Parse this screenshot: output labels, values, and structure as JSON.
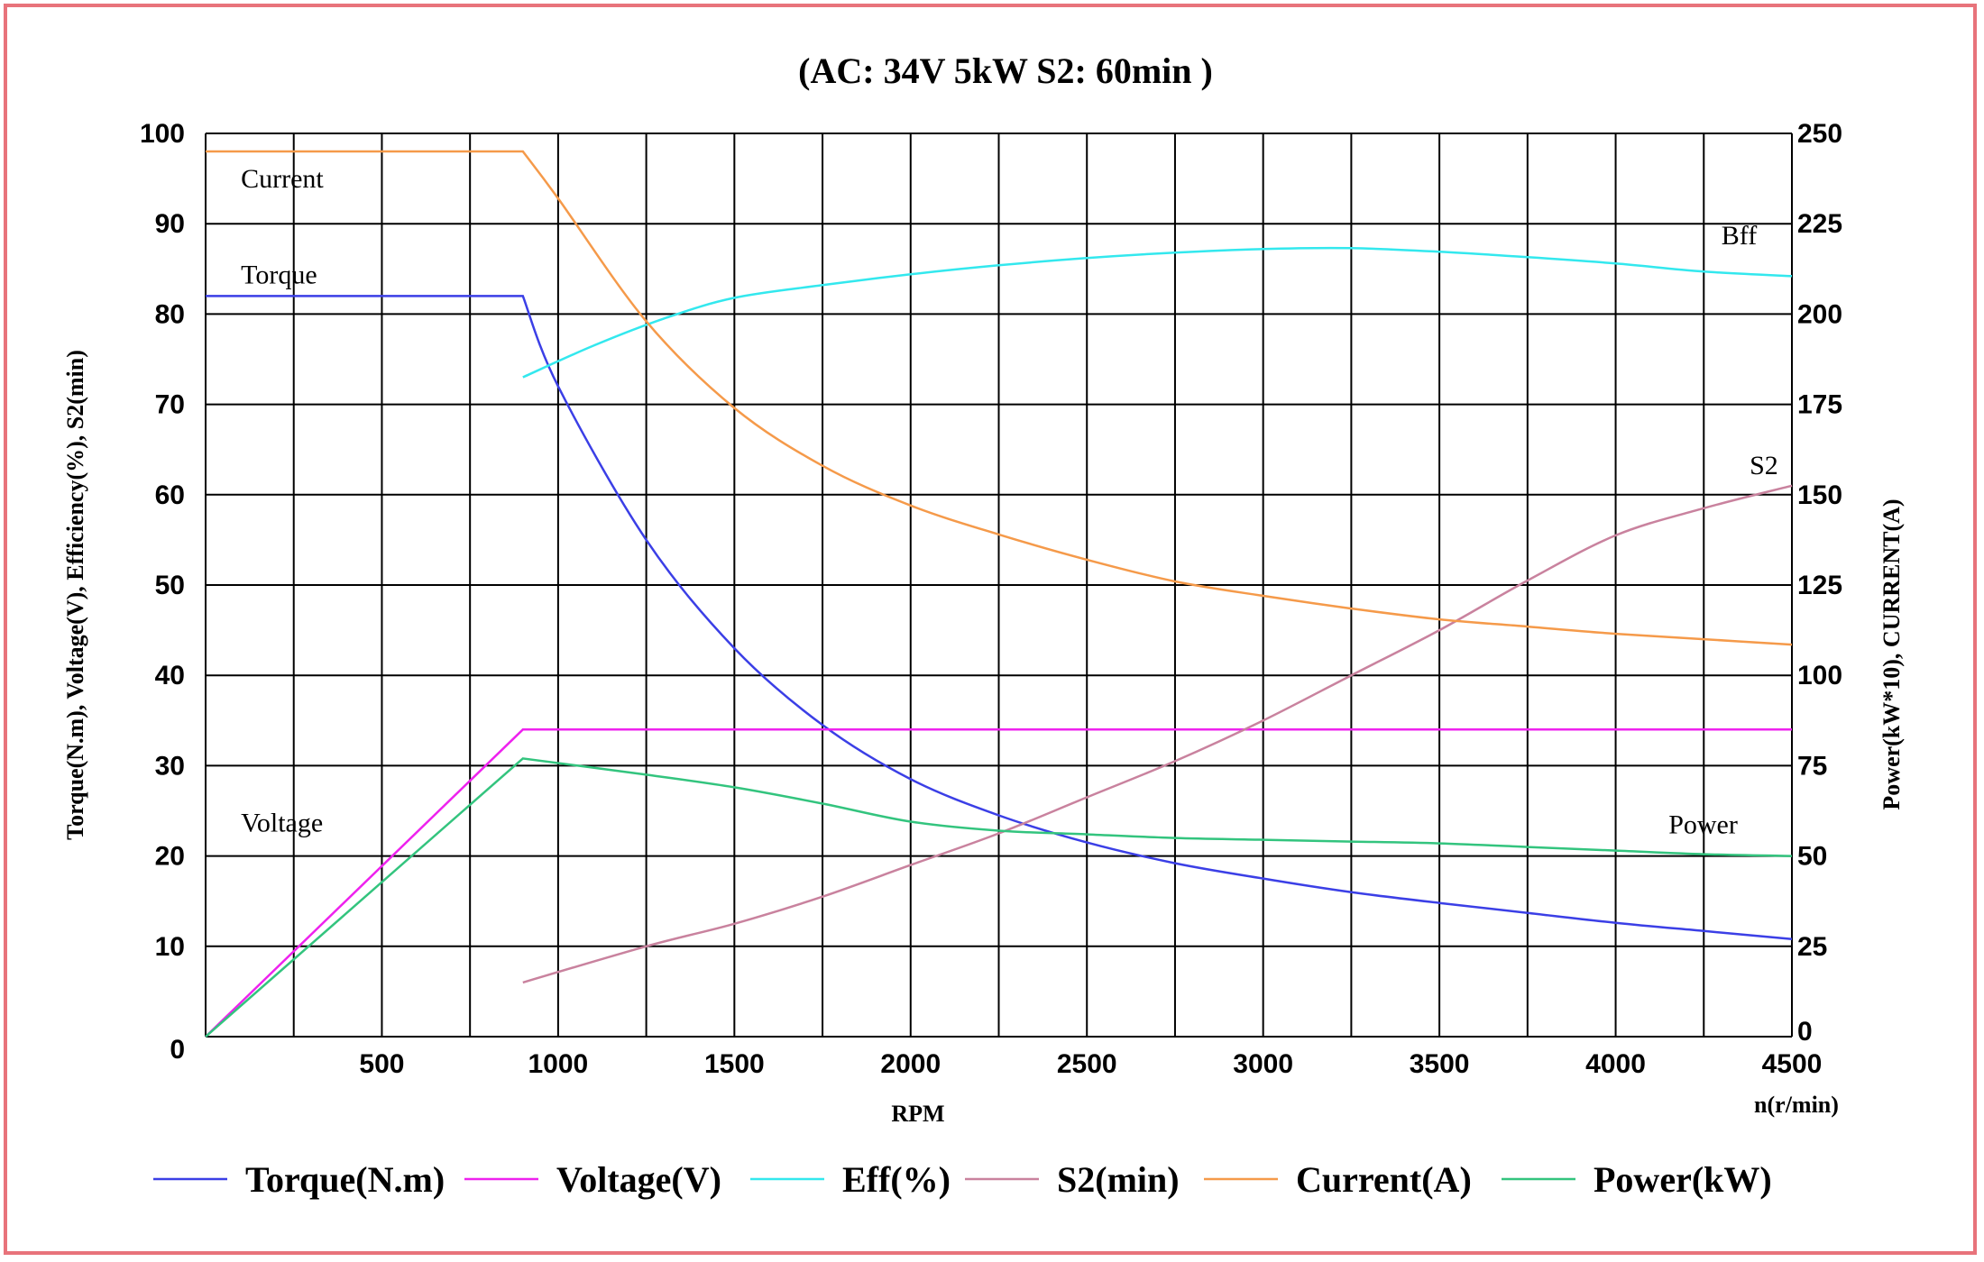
{
  "chart_data": {
    "type": "line",
    "title": "(AC: 34V  5kW   S2: 60min )",
    "xlabel": "RPM",
    "x_unit_label": "n(r/min)",
    "ylabel_left": "Torque(N.m), Voltage(V), Efficiency(%), S2(min)",
    "ylabel_right": "Power(kW*10),  CURRENT(A)",
    "xlim": [
      0,
      4500
    ],
    "ylim_left": [
      0,
      100
    ],
    "ylim_right": [
      0,
      250
    ],
    "x_ticks": [
      0,
      250,
      500,
      750,
      1000,
      1250,
      1500,
      1750,
      2000,
      2250,
      2500,
      2750,
      3000,
      3250,
      3500,
      3750,
      4000,
      4250,
      4500
    ],
    "x_tick_labels": [
      "500",
      "1000",
      "1500",
      "2000",
      "2500",
      "3000",
      "3500",
      "4000",
      "4500"
    ],
    "x_tick_label_values": [
      500,
      1000,
      1500,
      2000,
      2500,
      3000,
      3500,
      4000,
      4500
    ],
    "y_left_tick_labels": [
      "0",
      "10",
      "20",
      "30",
      "40",
      "50",
      "60",
      "70",
      "80",
      "90",
      "100"
    ],
    "y_right_tick_labels": [
      "0",
      "25",
      "50",
      "75",
      "100",
      "125",
      "150",
      "175",
      "200",
      "225",
      "250"
    ],
    "grid": true,
    "legend_position": "bottom",
    "series": [
      {
        "name": "Torque(N.m)",
        "color": "#3b3fe6",
        "axis": "left",
        "annotation": "Torque",
        "points": [
          [
            0,
            82
          ],
          [
            900,
            82
          ],
          [
            1000,
            72
          ],
          [
            1250,
            55
          ],
          [
            1500,
            43
          ],
          [
            1750,
            34.5
          ],
          [
            2000,
            28.5
          ],
          [
            2250,
            24.5
          ],
          [
            2500,
            21.5
          ],
          [
            2750,
            19.2
          ],
          [
            3000,
            17.5
          ],
          [
            3250,
            16
          ],
          [
            3500,
            14.8
          ],
          [
            3750,
            13.7
          ],
          [
            4000,
            12.6
          ],
          [
            4250,
            11.7
          ],
          [
            4500,
            10.8
          ]
        ]
      },
      {
        "name": "Voltage(V)",
        "color": "#ee22ee",
        "axis": "left",
        "annotation": "Voltage",
        "points": [
          [
            0,
            0
          ],
          [
            900,
            34
          ],
          [
            4500,
            34
          ]
        ]
      },
      {
        "name": "Eff(%)",
        "color": "#33e8ee",
        "axis": "left",
        "annotation": "Bff",
        "points": [
          [
            900,
            73
          ],
          [
            1100,
            76.5
          ],
          [
            1300,
            79.5
          ],
          [
            1500,
            81.8
          ],
          [
            1750,
            83.2
          ],
          [
            2000,
            84.4
          ],
          [
            2250,
            85.4
          ],
          [
            2500,
            86.2
          ],
          [
            2750,
            86.8
          ],
          [
            3000,
            87.2
          ],
          [
            3250,
            87.3
          ],
          [
            3500,
            86.9
          ],
          [
            3750,
            86.3
          ],
          [
            4000,
            85.6
          ],
          [
            4250,
            84.7
          ],
          [
            4500,
            84.2
          ]
        ]
      },
      {
        "name": "S2(min)",
        "color": "#c9829e",
        "axis": "left",
        "annotation": "S2",
        "points": [
          [
            900,
            6
          ],
          [
            1250,
            10
          ],
          [
            1500,
            12.5
          ],
          [
            1750,
            15.5
          ],
          [
            2000,
            19
          ],
          [
            2250,
            22.5
          ],
          [
            2500,
            26.5
          ],
          [
            2750,
            30.5
          ],
          [
            3000,
            35
          ],
          [
            3250,
            40
          ],
          [
            3500,
            45
          ],
          [
            3750,
            50.5
          ],
          [
            4000,
            55.5
          ],
          [
            4250,
            58.5
          ],
          [
            4500,
            61
          ]
        ]
      },
      {
        "name": "Current(A)",
        "color": "#f59a4a",
        "axis": "right",
        "annotation": "Current",
        "points": [
          [
            0,
            245
          ],
          [
            900,
            245
          ],
          [
            1000,
            232
          ],
          [
            1250,
            198
          ],
          [
            1500,
            174
          ],
          [
            1750,
            158
          ],
          [
            2000,
            147
          ],
          [
            2250,
            139
          ],
          [
            2500,
            132
          ],
          [
            2750,
            126
          ],
          [
            3000,
            122
          ],
          [
            3250,
            118.5
          ],
          [
            3500,
            115.5
          ],
          [
            3750,
            113.5
          ],
          [
            4000,
            111.5
          ],
          [
            4250,
            110
          ],
          [
            4500,
            108.5
          ]
        ]
      },
      {
        "name": "Power(kW)",
        "color": "#33c47e",
        "axis": "right",
        "annotation": "Power",
        "points": [
          [
            0,
            0
          ],
          [
            900,
            77
          ],
          [
            1250,
            72.5
          ],
          [
            1500,
            69
          ],
          [
            1750,
            64.5
          ],
          [
            2000,
            59.5
          ],
          [
            2250,
            57
          ],
          [
            2500,
            56
          ],
          [
            2750,
            55
          ],
          [
            3000,
            54.5
          ],
          [
            3250,
            54
          ],
          [
            3500,
            53.5
          ],
          [
            3750,
            52.5
          ],
          [
            4000,
            51.5
          ],
          [
            4250,
            50.5
          ],
          [
            4500,
            50
          ]
        ]
      }
    ]
  }
}
